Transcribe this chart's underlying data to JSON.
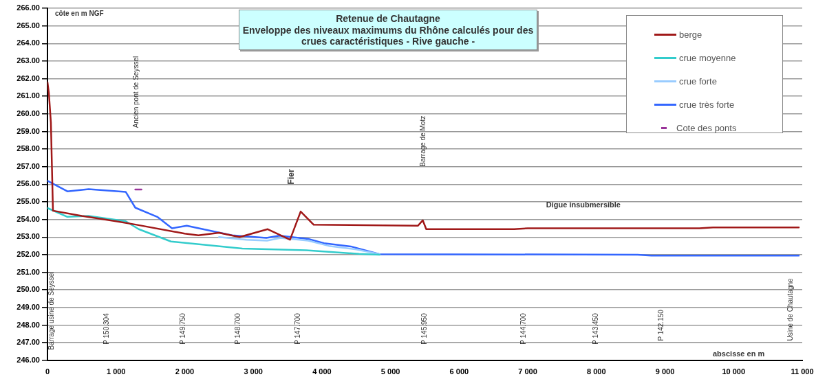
{
  "chart_data": {
    "type": "line",
    "title": "Retenue de Chautagne",
    "subtitle": "Enveloppe des niveaux maximums du Rhône calculés pour des crues caractéristiques - Rive gauche -",
    "xlabel": "abscisse en m",
    "ylabel": "côte en m NGF",
    "series": [
      {
        "name": "berge",
        "color": "#a01818",
        "x": [
          0,
          20,
          50,
          80,
          500,
          1000,
          1300,
          2000,
          2200,
          2500,
          2800,
          3210,
          3535,
          3690,
          3880,
          5400,
          5470,
          5520,
          6800,
          7000,
          9500,
          9700,
          10950
        ],
        "values": [
          261.8,
          261.2,
          259.5,
          254.5,
          254.2,
          253.9,
          253.7,
          253.2,
          253.1,
          253.25,
          253.0,
          253.45,
          252.85,
          254.45,
          253.7,
          253.65,
          253.95,
          253.45,
          253.45,
          253.5,
          253.5,
          253.55,
          253.55
        ]
      },
      {
        "name": "crue moyenne",
        "color": "#33cccc",
        "x": [
          0,
          290,
          600,
          1140,
          1330,
          1800,
          2840,
          3770,
          4540,
          4840
        ],
        "values": [
          254.65,
          254.15,
          254.2,
          253.9,
          253.45,
          252.75,
          252.35,
          252.25,
          252.05,
          252.0
        ]
      },
      {
        "name": "crue forte",
        "color": "#99ccff",
        "x": [
          2500,
          2900,
          3200,
          3400,
          3800,
          4100,
          4500,
          4840
        ],
        "values": [
          253.0,
          252.85,
          252.8,
          252.95,
          252.8,
          252.5,
          252.3,
          252.03
        ]
      },
      {
        "name": "crue très forte",
        "color": "#3366ff",
        "x": [
          0,
          290,
          600,
          1140,
          1280,
          1600,
          1815,
          2030,
          2690,
          3190,
          3380,
          3800,
          4030,
          4420,
          4840,
          8600,
          8800,
          10950
        ],
        "values": [
          256.2,
          255.6,
          255.72,
          255.57,
          254.67,
          254.15,
          253.5,
          253.65,
          253.1,
          252.95,
          253.08,
          252.9,
          252.65,
          252.47,
          252.03,
          252.0,
          251.95,
          251.95
        ]
      },
      {
        "name": "Cote des ponts",
        "color": "#993399",
        "x": [
          1280,
          1370
        ],
        "values": [
          255.7,
          255.7
        ]
      }
    ],
    "annotations": [
      "Barrage usine de Seyssel",
      "Ancien pont de Seyssel",
      "Fier",
      "Barrage de Motz",
      "P 150.304",
      "P 149.750",
      "P 148.700",
      "P 147.700",
      "P 145.950",
      "P 144.700",
      "P 143.450",
      "P 142.150",
      "Usine de Chautagne",
      "Digue insubmersible"
    ],
    "xlim": [
      0,
      11000
    ],
    "xticks": [
      0,
      {
        "value": 1000,
        "label": "1 000"
      },
      {
        "value": 2000,
        "label": "2 000"
      },
      {
        "value": 3000,
        "label": "3 000"
      },
      {
        "value": 4000,
        "label": "4 000"
      },
      {
        "value": 5000,
        "label": "5 000"
      },
      {
        "value": 6000,
        "label": "6 000"
      },
      {
        "value": 7000,
        "label": "7 000"
      },
      {
        "value": 8000,
        "label": "8 000"
      },
      {
        "value": 9000,
        "label": "9 000"
      },
      {
        "value": 10000,
        "label": "10 000"
      },
      {
        "value": 11000,
        "label": "11 000"
      }
    ],
    "ylim": [
      246,
      266
    ],
    "yticks": [
      {
        "value": 246,
        "label": "246.00"
      },
      {
        "value": 247,
        "label": "247.00"
      },
      {
        "value": 248,
        "label": "248.00"
      },
      {
        "value": 249,
        "label": "249.00"
      },
      {
        "value": 250,
        "label": "250.00"
      },
      {
        "value": 251,
        "label": "251.00"
      },
      {
        "value": 252,
        "label": "252.00"
      },
      {
        "value": 253,
        "label": "253.00"
      },
      {
        "value": 254,
        "label": "254.00"
      },
      {
        "value": 255,
        "label": "255.00"
      },
      {
        "value": 256,
        "label": "256.00"
      },
      {
        "value": 257,
        "label": "257.00"
      },
      {
        "value": 258,
        "label": "258.00"
      },
      {
        "value": 259,
        "label": "259.00"
      },
      {
        "value": 260,
        "label": "260.00"
      },
      {
        "value": 261,
        "label": "261.00"
      },
      {
        "value": 262,
        "label": "262.00"
      },
      {
        "value": 263,
        "label": "263.00"
      },
      {
        "value": 264,
        "label": "264.00"
      },
      {
        "value": 265,
        "label": "265.00"
      },
      {
        "value": 266,
        "label": "266.00"
      }
    ],
    "grid": "y",
    "legend": "top right",
    "marker": "none",
    "line_style": "solid"
  }
}
